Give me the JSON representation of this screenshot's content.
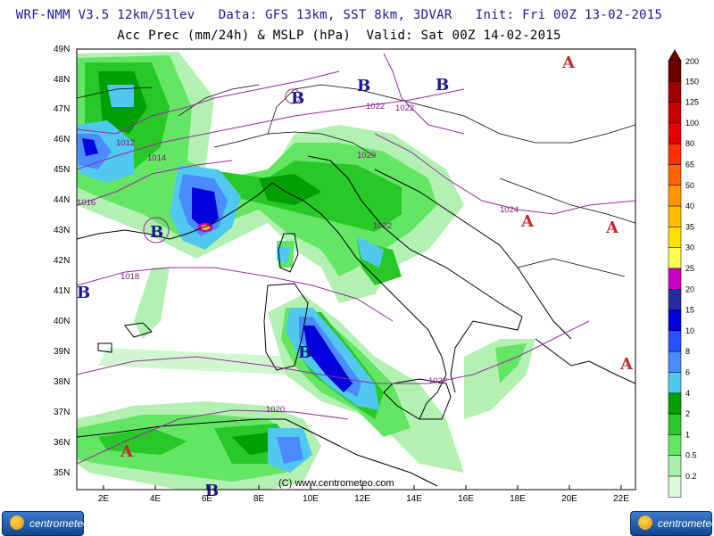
{
  "header": {
    "line1": "WRF-NMM V3.5 12km/51lev   Data: GFS 13km, SST 8km, 3DVAR   Init: Fri 00Z 13-02-2015",
    "line2": "Acc Prec (mm/24h) & MSLP (hPa)  Valid: Sat 00Z 14-02-2015"
  },
  "map": {
    "lat_labels": [
      "49N",
      "48N",
      "47N",
      "46N",
      "45N",
      "44N",
      "43N",
      "42N",
      "41N",
      "40N",
      "39N",
      "38N",
      "37N",
      "36N",
      "35N"
    ],
    "lon_labels": [
      "2E",
      "4E",
      "6E",
      "8E",
      "10E",
      "12E",
      "14E",
      "16E",
      "18E",
      "20E",
      "22E"
    ],
    "credit": "(C) www.centrometeo.com",
    "isobars": [
      "1012",
      "1014",
      "1016",
      "1018",
      "1020",
      "1022",
      "1022",
      "1022",
      "1024",
      "1022",
      "1020"
    ],
    "pressure_centers": [
      {
        "type": "low",
        "label": "B"
      },
      {
        "type": "low",
        "label": "B"
      },
      {
        "type": "low",
        "label": "B"
      },
      {
        "type": "low",
        "label": "B"
      },
      {
        "type": "low",
        "label": "B"
      },
      {
        "type": "low",
        "label": "B"
      },
      {
        "type": "low",
        "label": "B"
      },
      {
        "type": "high",
        "label": "A"
      },
      {
        "type": "high",
        "label": "A"
      },
      {
        "type": "high",
        "label": "A"
      },
      {
        "type": "high",
        "label": "A"
      },
      {
        "type": "high",
        "label": "A"
      }
    ],
    "colors": {
      "low": "#1a1a8a",
      "high": "#c42a2a",
      "isobar": "#9a2aa0",
      "coast": "#000000"
    }
  },
  "colorbar": {
    "labels": [
      "200",
      "150",
      "125",
      "100",
      "80",
      "65",
      "50",
      "40",
      "35",
      "30",
      "25",
      "20",
      "15",
      "10",
      "8",
      "6",
      "4",
      "2",
      "1",
      "0.5",
      "0.2"
    ],
    "colors": [
      "#6e0000",
      "#a00000",
      "#c80000",
      "#e60000",
      "#ff3000",
      "#ff6400",
      "#ff9600",
      "#ffbe00",
      "#ffe000",
      "#ffff50",
      "#c800c8",
      "#2828a0",
      "#0000dc",
      "#2850ff",
      "#4a8cff",
      "#50c8f0",
      "#00a000",
      "#28c828",
      "#64e664",
      "#aaf0aa",
      "#dcfadc"
    ]
  },
  "logos": {
    "left": "centrometeo",
    "right": "centrometeo"
  }
}
